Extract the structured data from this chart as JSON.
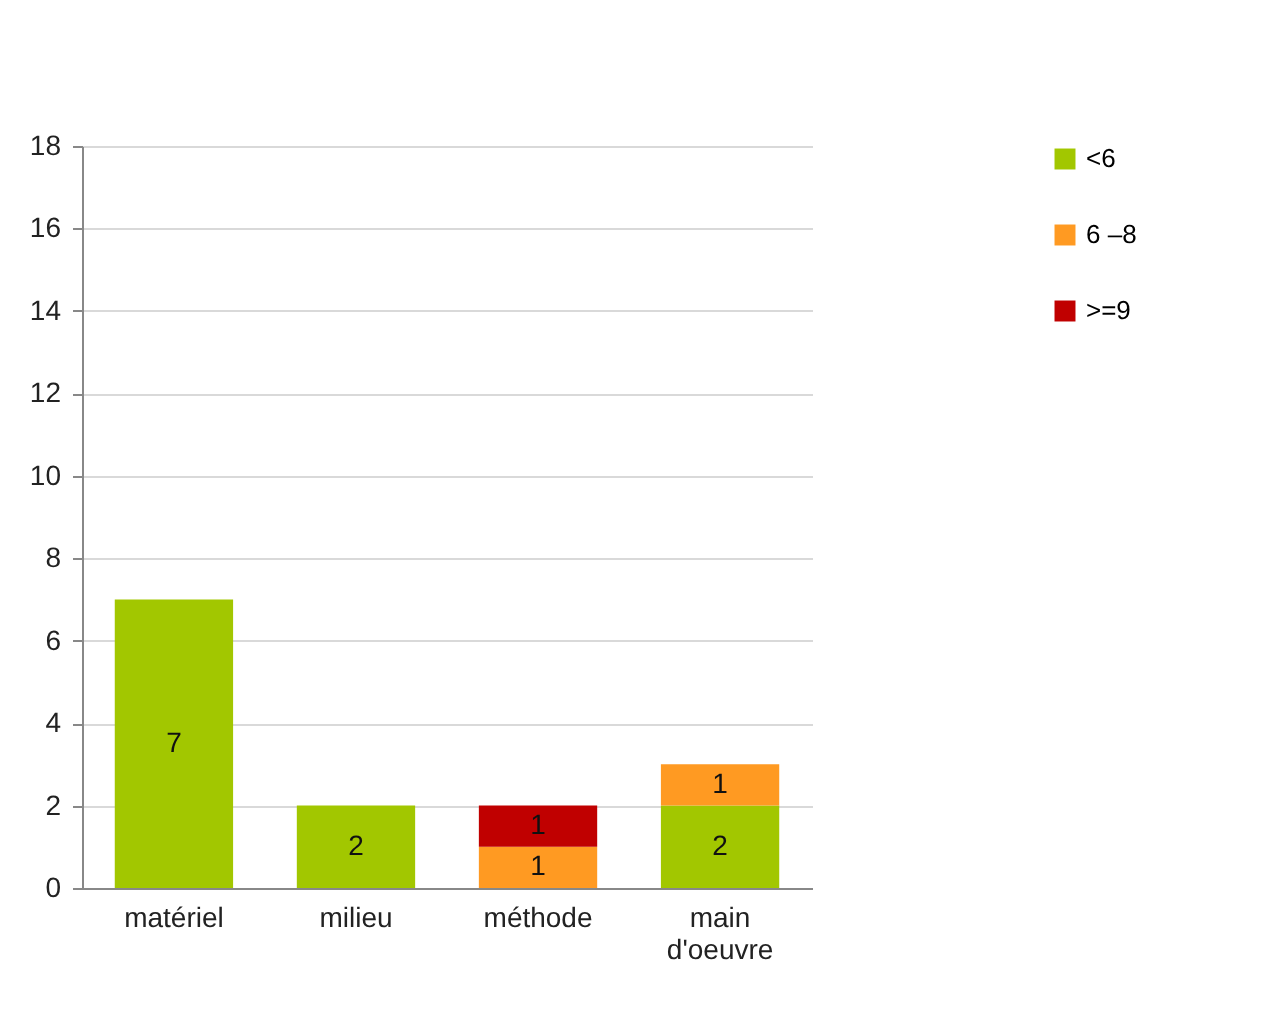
{
  "chart_data": {
    "type": "bar",
    "stacked": true,
    "categories": [
      "matériel",
      "milieu",
      "méthode",
      "main d'oeuvre"
    ],
    "series": [
      {
        "name": "<6",
        "color": "#a2c700",
        "values": [
          7,
          2,
          null,
          2
        ]
      },
      {
        "name": "6 –8",
        "color": "#ff9a22",
        "values": [
          null,
          null,
          1,
          1
        ]
      },
      {
        "name": ">=9",
        "color": "#c00000",
        "values": [
          null,
          null,
          1,
          null
        ]
      }
    ],
    "ylim": [
      0,
      18
    ],
    "yticks": [
      0,
      2,
      4,
      6,
      8,
      10,
      12,
      14,
      16,
      18
    ],
    "grid": "y",
    "legend": "right",
    "data_labels": true
  }
}
